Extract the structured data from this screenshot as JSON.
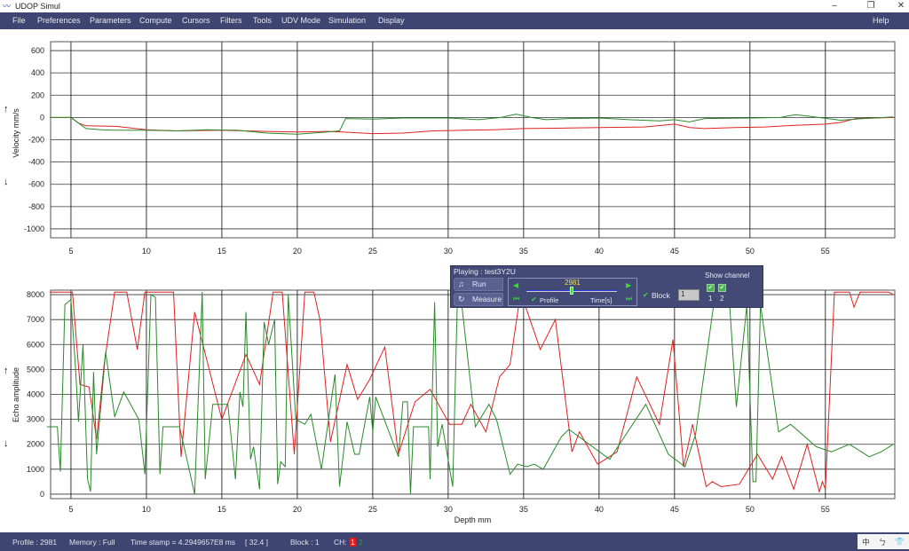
{
  "window": {
    "title": "UDOP Simul",
    "icon": "udop-logo-icon",
    "controls": [
      "minimize-icon",
      "restore-icon",
      "close-icon"
    ]
  },
  "menu": [
    "File",
    "Preferences",
    "Parameters",
    "Compute",
    "Cursors",
    "Filters",
    "Tools",
    "UDV Mode",
    "Simulation",
    "Display"
  ],
  "menu_help": "Help",
  "panel": {
    "playing": "Playing : test3Y2U",
    "run": "Run",
    "measure": "Measure",
    "profile_value": "2981",
    "profile_label": "Profile",
    "time_label": "Time[s]",
    "block_label": "Block",
    "block_value": "1",
    "show_channel": "Show channel",
    "ch1": "1",
    "ch2": "2",
    "slider_fraction": 0.5
  },
  "status": {
    "profile": "Profile : 2981",
    "memory": "Memory : Full",
    "timestamp": "Time stamp = 4.2949657E8 ms",
    "bracket": "[ 32.4 ]",
    "block": "Block : 1",
    "ch": "CH:",
    "ch1": "1",
    "ch2": "2",
    "ch1_color": "#e02020",
    "ch2_color": "#22aa22"
  },
  "colors": {
    "channel1": "#e02020",
    "channel2": "#2a8a2a",
    "menubar": "#3e4570"
  },
  "chart_data": [
    {
      "type": "line",
      "ylabel": "Velocity mm/s",
      "xlabel": "",
      "xlim": [
        3.65,
        59.6
      ],
      "ylim": [
        -1080,
        680
      ],
      "xticks": [
        5,
        10,
        15,
        20,
        25,
        30,
        35,
        40,
        45,
        50,
        55
      ],
      "yticks": [
        600,
        400,
        200,
        0,
        -200,
        -400,
        -600,
        -800,
        -1000
      ],
      "grid": true,
      "series": [
        {
          "channel": "1",
          "color": "#e02020",
          "points": [
            [
              3.6,
              0
            ],
            [
              5,
              0
            ],
            [
              5.5,
              -50
            ],
            [
              6,
              -75
            ],
            [
              8,
              -80
            ],
            [
              10,
              -110
            ],
            [
              12,
              -120
            ],
            [
              15,
              -115
            ],
            [
              18,
              -125
            ],
            [
              20,
              -130
            ],
            [
              22,
              -125
            ],
            [
              23,
              -130
            ],
            [
              25,
              -145
            ],
            [
              27,
              -140
            ],
            [
              29,
              -120
            ],
            [
              31,
              -115
            ],
            [
              33,
              -110
            ],
            [
              35,
              -100
            ],
            [
              38,
              -95
            ],
            [
              40,
              -90
            ],
            [
              43,
              -85
            ],
            [
              45,
              -60
            ],
            [
              46,
              -90
            ],
            [
              47,
              -100
            ],
            [
              49,
              -90
            ],
            [
              51,
              -85
            ],
            [
              53,
              -70
            ],
            [
              55,
              -60
            ],
            [
              56,
              -45
            ],
            [
              57,
              -10
            ],
            [
              59.5,
              0
            ]
          ]
        },
        {
          "channel": "2",
          "color": "#2a8a2a",
          "points": [
            [
              3.6,
              0
            ],
            [
              5,
              0
            ],
            [
              5.5,
              -50
            ],
            [
              6,
              -100
            ],
            [
              7,
              -110
            ],
            [
              8,
              -115
            ],
            [
              10,
              -115
            ],
            [
              12,
              -120
            ],
            [
              14,
              -110
            ],
            [
              16,
              -115
            ],
            [
              18,
              -140
            ],
            [
              20,
              -150
            ],
            [
              22,
              -130
            ],
            [
              22.8,
              -120
            ],
            [
              23.2,
              -10
            ],
            [
              25,
              -15
            ],
            [
              27,
              -5
            ],
            [
              30,
              -5
            ],
            [
              32,
              -20
            ],
            [
              33.5,
              0
            ],
            [
              34.5,
              30
            ],
            [
              35.5,
              0
            ],
            [
              36.5,
              -20
            ],
            [
              38,
              -10
            ],
            [
              40,
              -5
            ],
            [
              42,
              -20
            ],
            [
              44,
              -30
            ],
            [
              45,
              -20
            ],
            [
              46,
              -40
            ],
            [
              47,
              -10
            ],
            [
              50,
              -5
            ],
            [
              52,
              0
            ],
            [
              53,
              25
            ],
            [
              54,
              10
            ],
            [
              56,
              -25
            ],
            [
              57.5,
              -10
            ],
            [
              59.5,
              5
            ]
          ]
        }
      ]
    },
    {
      "type": "line",
      "ylabel": "Echo amplitude",
      "xlabel": "Depth mm",
      "xlim": [
        3.65,
        59.6
      ],
      "ylim": [
        -180,
        8180
      ],
      "xticks": [
        5,
        10,
        15,
        20,
        25,
        30,
        35,
        40,
        45,
        50,
        55
      ],
      "yticks": [
        8000,
        7000,
        6000,
        5000,
        4000,
        3000,
        2000,
        1000,
        0
      ],
      "grid": true,
      "series": [
        {
          "channel": "1",
          "color": "#e02020",
          "points": [
            [
              3.6,
              8100
            ],
            [
              5.1,
              8100
            ],
            [
              5.6,
              4400
            ],
            [
              6.2,
              4300
            ],
            [
              6.7,
              2200
            ],
            [
              7.2,
              5200
            ],
            [
              7.9,
              8100
            ],
            [
              8.7,
              8100
            ],
            [
              9.4,
              5800
            ],
            [
              9.9,
              8100
            ],
            [
              11.8,
              8100
            ],
            [
              12.3,
              1500
            ],
            [
              13.2,
              7300
            ],
            [
              15,
              3000
            ],
            [
              16.6,
              5600
            ],
            [
              17.5,
              4400
            ],
            [
              18.4,
              8100
            ],
            [
              19,
              8100
            ],
            [
              19.8,
              1600
            ],
            [
              20.5,
              8100
            ],
            [
              21.1,
              8100
            ],
            [
              21.5,
              7000
            ],
            [
              22.2,
              2100
            ],
            [
              23.3,
              5200
            ],
            [
              24,
              3800
            ],
            [
              24.8,
              4600
            ],
            [
              25.8,
              5900
            ],
            [
              26.7,
              1600
            ],
            [
              27.8,
              3700
            ],
            [
              28.8,
              4200
            ],
            [
              30.1,
              2800
            ],
            [
              30.9,
              2800
            ],
            [
              31.5,
              3600
            ],
            [
              32.5,
              2500
            ],
            [
              33.4,
              4700
            ],
            [
              34.1,
              5200
            ],
            [
              34.8,
              8100
            ],
            [
              36.1,
              5800
            ],
            [
              37.1,
              7000
            ],
            [
              38.2,
              1700
            ],
            [
              38.7,
              2500
            ],
            [
              39.9,
              1200
            ],
            [
              41.2,
              1700
            ],
            [
              42.5,
              4700
            ],
            [
              44,
              2800
            ],
            [
              44.9,
              6200
            ],
            [
              45.6,
              1100
            ],
            [
              46.2,
              2800
            ],
            [
              47.1,
              300
            ],
            [
              47.5,
              500
            ],
            [
              48.1,
              300
            ],
            [
              49.3,
              400
            ],
            [
              50.5,
              1600
            ],
            [
              51.5,
              600
            ],
            [
              52.1,
              1500
            ],
            [
              52.9,
              200
            ],
            [
              53.8,
              2000
            ],
            [
              54.6,
              100
            ],
            [
              54.8,
              500
            ],
            [
              55,
              200
            ],
            [
              55.6,
              8100
            ],
            [
              56.6,
              8100
            ],
            [
              56.9,
              7500
            ],
            [
              57.3,
              8100
            ],
            [
              59.2,
              8100
            ],
            [
              59.5,
              8000
            ]
          ]
        },
        {
          "channel": "2",
          "color": "#2a8a2a",
          "points": [
            [
              3.4,
              2700
            ],
            [
              4.1,
              2700
            ],
            [
              4.3,
              900
            ],
            [
              4.6,
              7600
            ],
            [
              5,
              7800
            ],
            [
              5.3,
              5100
            ],
            [
              5.5,
              2900
            ],
            [
              5.8,
              6000
            ],
            [
              6.1,
              600
            ],
            [
              6.3,
              100
            ],
            [
              6.5,
              4900
            ],
            [
              6.7,
              1600
            ],
            [
              7.3,
              5700
            ],
            [
              7.9,
              3100
            ],
            [
              8.5,
              4100
            ],
            [
              9.5,
              3000
            ],
            [
              9.9,
              800
            ],
            [
              10.3,
              8000
            ],
            [
              10.6,
              7900
            ],
            [
              10.9,
              800
            ],
            [
              11.1,
              2700
            ],
            [
              12.2,
              2700
            ],
            [
              13.2,
              0
            ],
            [
              13.7,
              8100
            ],
            [
              13.9,
              600
            ],
            [
              14.4,
              3600
            ],
            [
              15.4,
              3600
            ],
            [
              15.9,
              600
            ],
            [
              16.2,
              4100
            ],
            [
              16.4,
              3500
            ],
            [
              16.6,
              7300
            ],
            [
              16.9,
              1400
            ],
            [
              17.1,
              1900
            ],
            [
              17.5,
              200
            ],
            [
              17.8,
              6900
            ],
            [
              18.1,
              6000
            ],
            [
              18.5,
              7000
            ],
            [
              18.7,
              400
            ],
            [
              18.9,
              1300
            ],
            [
              19.2,
              1100
            ],
            [
              19.4,
              8000
            ],
            [
              19.9,
              3000
            ],
            [
              20.5,
              2800
            ],
            [
              20.9,
              3200
            ],
            [
              21.6,
              1000
            ],
            [
              22.5,
              4800
            ],
            [
              22.8,
              300
            ],
            [
              23.3,
              2900
            ],
            [
              23.8,
              1600
            ],
            [
              24.1,
              1600
            ],
            [
              24.8,
              3900
            ],
            [
              25,
              2500
            ],
            [
              25.2,
              3900
            ],
            [
              26.7,
              1500
            ],
            [
              27,
              3700
            ],
            [
              27.3,
              3700
            ],
            [
              27.5,
              0
            ],
            [
              27.7,
              2700
            ],
            [
              28.7,
              2700
            ],
            [
              28.8,
              600
            ],
            [
              29.1,
              7700
            ],
            [
              29.3,
              1900
            ],
            [
              29.6,
              2800
            ],
            [
              30.3,
              300
            ],
            [
              30.6,
              7600
            ],
            [
              30.9,
              7600
            ],
            [
              31.8,
              2700
            ],
            [
              32.7,
              3600
            ],
            [
              33.2,
              3000
            ],
            [
              34.1,
              800
            ],
            [
              34.6,
              1200
            ],
            [
              35.2,
              1100
            ],
            [
              35.7,
              1200
            ],
            [
              36.3,
              1000
            ],
            [
              37.5,
              2300
            ],
            [
              38,
              2600
            ],
            [
              40.7,
              1400
            ],
            [
              43.1,
              3600
            ],
            [
              44.6,
              1600
            ],
            [
              45.7,
              1100
            ],
            [
              46.4,
              2400
            ],
            [
              47.6,
              7600
            ],
            [
              48,
              8100
            ],
            [
              48.6,
              8100
            ],
            [
              49.1,
              3500
            ],
            [
              49.8,
              7600
            ],
            [
              50.2,
              500
            ],
            [
              50.4,
              500
            ],
            [
              50.7,
              7600
            ],
            [
              51.9,
              2500
            ],
            [
              52.7,
              2800
            ],
            [
              54.4,
              1900
            ],
            [
              55.4,
              1700
            ],
            [
              56.6,
              2000
            ],
            [
              57.9,
              1500
            ],
            [
              58.7,
              1700
            ],
            [
              59.5,
              2000
            ]
          ]
        }
      ]
    }
  ]
}
